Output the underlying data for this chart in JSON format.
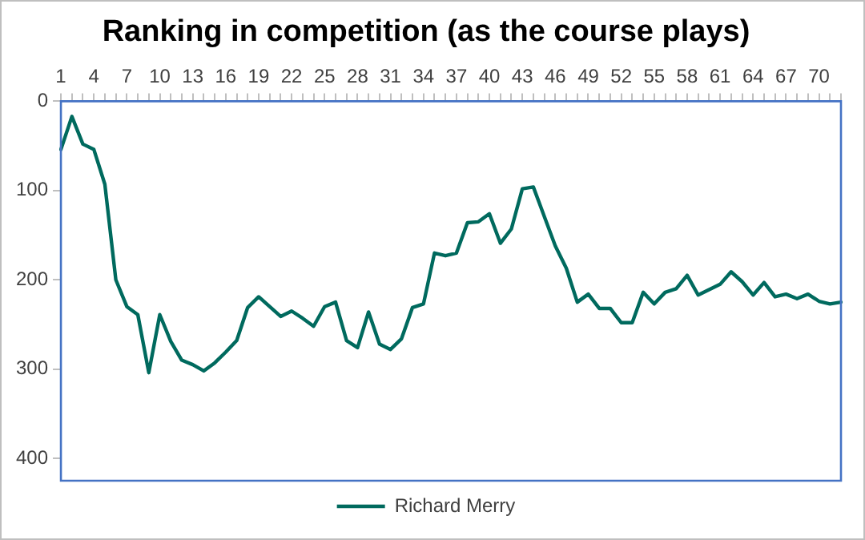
{
  "chart_data": {
    "type": "line",
    "title": "Ranking in competition (as the course plays)",
    "categories": [
      "1",
      null,
      null,
      "4",
      null,
      null,
      "7",
      null,
      null,
      "10",
      null,
      null,
      "13",
      null,
      null,
      "16",
      null,
      null,
      "19",
      null,
      null,
      "22",
      null,
      null,
      "25",
      null,
      null,
      "28",
      null,
      null,
      "31",
      null,
      null,
      "34",
      null,
      null,
      "37",
      null,
      null,
      "40",
      null,
      null,
      "43",
      null,
      null,
      "46",
      null,
      null,
      "49",
      null,
      null,
      "52",
      null,
      null,
      "55",
      null,
      null,
      "58",
      null,
      null,
      "61",
      null,
      null,
      "64",
      null,
      null,
      "67",
      null,
      null,
      "70",
      null,
      null
    ],
    "series": [
      {
        "name": "Richard Merry",
        "color": "#006a5e",
        "values": [
          54,
          17,
          48,
          54,
          93,
          200,
          230,
          239,
          304,
          239,
          269,
          290,
          295,
          302,
          293,
          281,
          268,
          231,
          219,
          230,
          241,
          235,
          243,
          252,
          230,
          225,
          268,
          276,
          236,
          272,
          278,
          266,
          231,
          227,
          170,
          173,
          170,
          136,
          135,
          126,
          159,
          143,
          98,
          96,
          129,
          162,
          187,
          225,
          216,
          232,
          232,
          248,
          248,
          214,
          227,
          214,
          210,
          195,
          217,
          211,
          205,
          191,
          202,
          217,
          203,
          219,
          216,
          221,
          216,
          224,
          227,
          225
        ]
      }
    ],
    "ylim": [
      425,
      0
    ],
    "yticks": [
      0,
      100,
      200,
      300,
      400
    ],
    "grid": false,
    "legend": "bottom",
    "marker": "none",
    "line_style": "solid"
  }
}
